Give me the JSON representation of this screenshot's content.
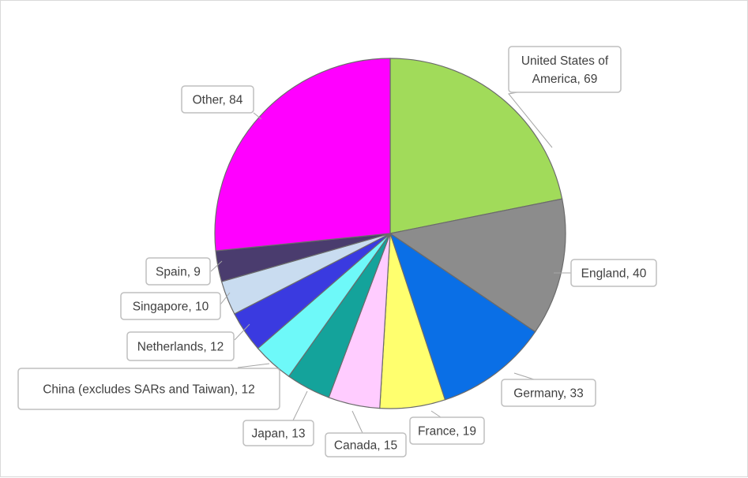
{
  "chart_data": {
    "type": "pie",
    "title": "",
    "slices": [
      {
        "label": "United States of America",
        "value": 69,
        "color": "#a1db5a"
      },
      {
        "label": "England",
        "value": 40,
        "color": "#8c8c8c"
      },
      {
        "label": "Germany",
        "value": 33,
        "color": "#0a6fe6"
      },
      {
        "label": "France",
        "value": 19,
        "color": "#ffff6e"
      },
      {
        "label": "Canada",
        "value": 15,
        "color": "#ffccff"
      },
      {
        "label": "Japan",
        "value": 13,
        "color": "#14a39b"
      },
      {
        "label": "China (excludes SARs and Taiwan)",
        "value": 12,
        "color": "#6ef9f9"
      },
      {
        "label": "Netherlands",
        "value": 12,
        "color": "#3a3ae0"
      },
      {
        "label": "Singapore",
        "value": 10,
        "color": "#c9dcf0"
      },
      {
        "label": "Spain",
        "value": 9,
        "color": "#4a3c6e"
      },
      {
        "label": "Other",
        "value": 84,
        "color": "#ff00ff"
      }
    ],
    "data_labels": [
      {
        "lines": [
          "United States of",
          "America, 69"
        ]
      },
      {
        "lines": [
          "England, 40"
        ]
      },
      {
        "lines": [
          "Germany, 33"
        ]
      },
      {
        "lines": [
          "France, 19"
        ]
      },
      {
        "lines": [
          "Canada, 15"
        ]
      },
      {
        "lines": [
          "Japan, 13"
        ]
      },
      {
        "lines": [
          "China (excludes SARs and Taiwan), 12"
        ]
      },
      {
        "lines": [
          "Netherlands, 12"
        ]
      },
      {
        "lines": [
          "Singapore, 10"
        ]
      },
      {
        "lines": [
          "Spain, 9"
        ]
      },
      {
        "lines": [
          "Other, 84"
        ]
      }
    ],
    "legend": "none"
  }
}
